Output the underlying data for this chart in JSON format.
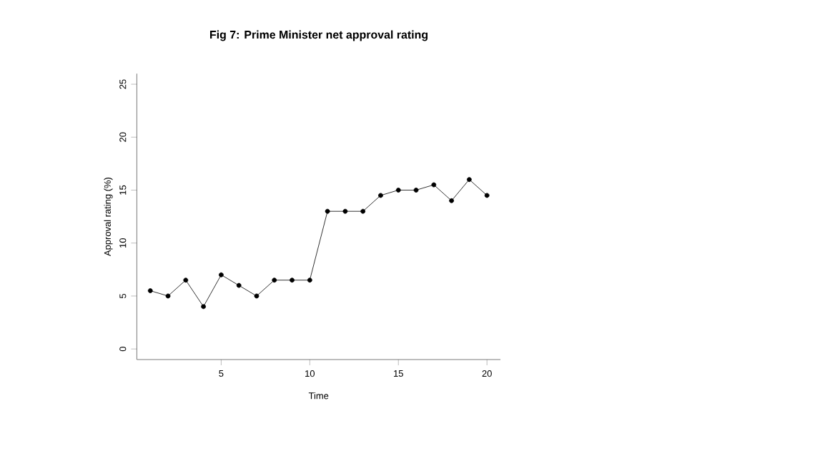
{
  "chart_data": {
    "type": "line",
    "title": "Fig 7: Prime Minister net approval rating",
    "xlabel": "Time",
    "ylabel": "Approval rating (%)",
    "x": [
      1,
      2,
      3,
      4,
      5,
      6,
      7,
      8,
      9,
      10,
      11,
      12,
      13,
      14,
      15,
      16,
      17,
      18,
      19,
      20
    ],
    "values": [
      5.5,
      5,
      6.5,
      4,
      7,
      6,
      5,
      6.5,
      6.5,
      6.5,
      13,
      13,
      13,
      14.5,
      15,
      15,
      15.5,
      14,
      16,
      14.5
    ],
    "color": "#000000",
    "marker": "circle",
    "line_style": "solid",
    "xlim": [
      0.24,
      20.76
    ],
    "ylim": [
      -1,
      26
    ],
    "xticks": [
      5,
      10,
      15,
      20
    ],
    "yticks": [
      0,
      5,
      10,
      15,
      20,
      25
    ]
  }
}
